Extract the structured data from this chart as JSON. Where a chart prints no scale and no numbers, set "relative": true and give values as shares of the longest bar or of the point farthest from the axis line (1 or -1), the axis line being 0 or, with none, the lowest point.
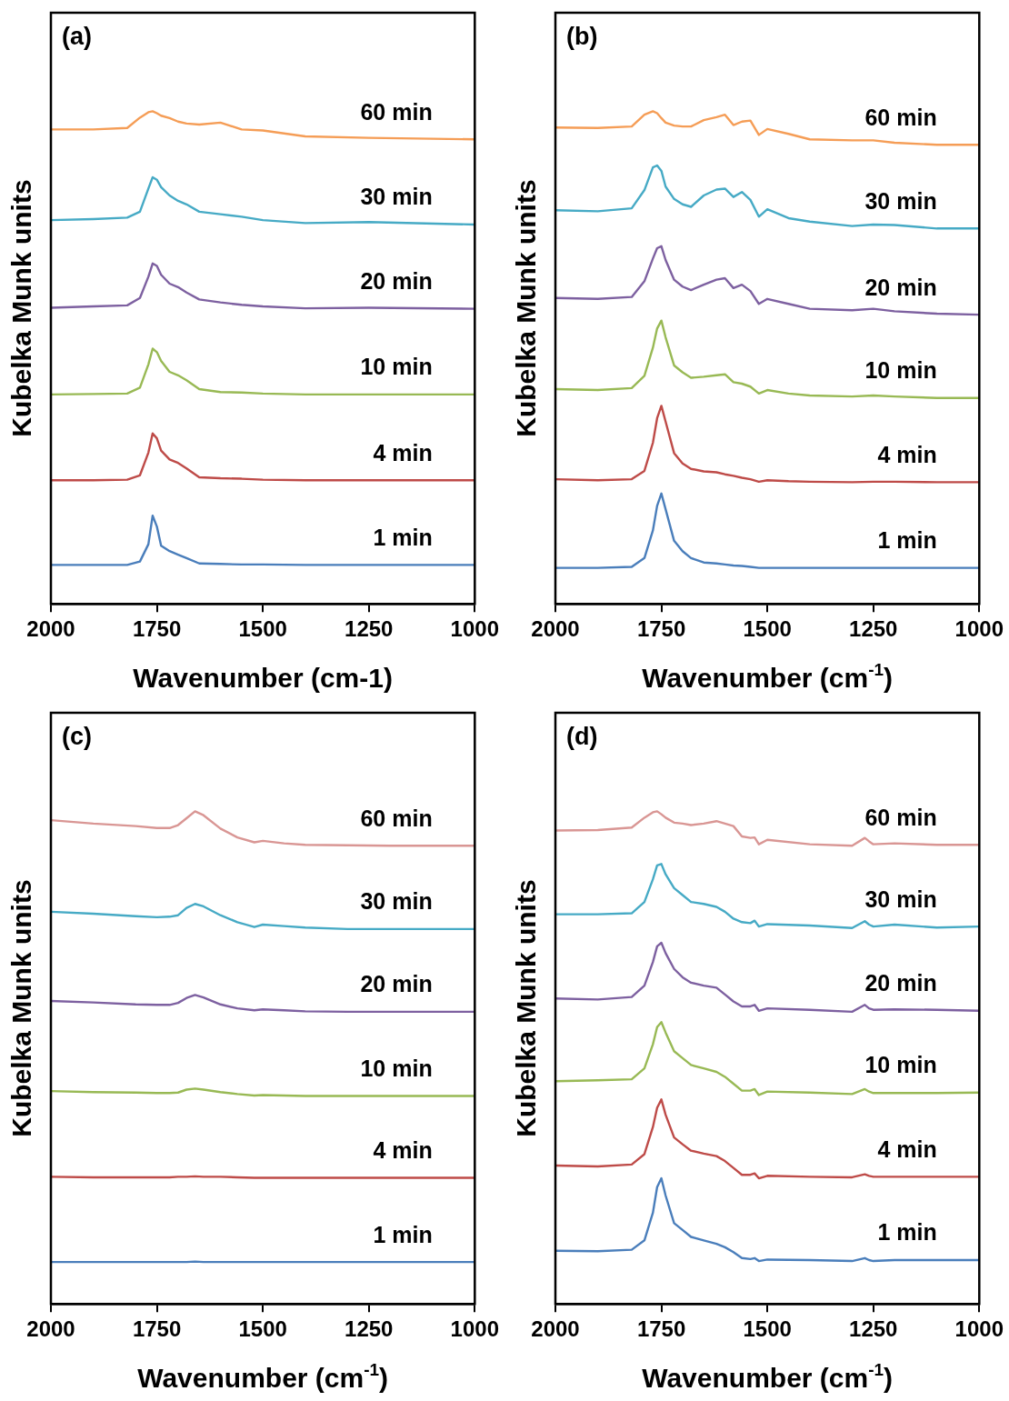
{
  "chart_data": [
    {
      "type": "line",
      "title": "(a)",
      "xlabel": "Wavenumber (cm-1)",
      "ylabel": "Kubelka Munk units",
      "relative": true,
      "legend": false,
      "xlim": [
        2000,
        1000
      ],
      "xticks": [
        2000,
        1750,
        1500,
        1250,
        1000
      ],
      "x": [
        2000,
        1900,
        1820,
        1790,
        1770,
        1760,
        1750,
        1740,
        1720,
        1700,
        1680,
        1650,
        1600,
        1550,
        1500,
        1400,
        1250,
        1000
      ],
      "series": [
        {
          "name": "60 min",
          "color": "#f59d56",
          "values": [
            0.963,
            0.963,
            0.966,
            0.987,
            0.998,
            1,
            0.996,
            0.991,
            0.986,
            0.979,
            0.975,
            0.973,
            0.977,
            0.963,
            0.961,
            0.949,
            0.946,
            0.943
          ]
        },
        {
          "name": "30 min",
          "color": "#46aac5",
          "values": [
            0.779,
            0.781,
            0.784,
            0.796,
            0.843,
            0.866,
            0.861,
            0.846,
            0.829,
            0.818,
            0.811,
            0.796,
            0.791,
            0.786,
            0.779,
            0.773,
            0.775,
            0.77
          ]
        },
        {
          "name": "20 min",
          "color": "#7d60a0",
          "values": [
            0.601,
            0.604,
            0.606,
            0.621,
            0.664,
            0.691,
            0.686,
            0.668,
            0.65,
            0.643,
            0.632,
            0.618,
            0.612,
            0.607,
            0.604,
            0.6,
            0.601,
            0.599
          ]
        },
        {
          "name": "10 min",
          "color": "#98b954",
          "values": [
            0.425,
            0.426,
            0.427,
            0.439,
            0.486,
            0.518,
            0.511,
            0.493,
            0.471,
            0.464,
            0.454,
            0.436,
            0.43,
            0.429,
            0.427,
            0.425,
            0.425,
            0.425
          ]
        },
        {
          "name": "4 min",
          "color": "#be4b48",
          "values": [
            0.251,
            0.251,
            0.252,
            0.261,
            0.307,
            0.346,
            0.336,
            0.311,
            0.293,
            0.286,
            0.275,
            0.257,
            0.255,
            0.254,
            0.252,
            0.251,
            0.251,
            0.251
          ]
        },
        {
          "name": "1 min",
          "color": "#4a7ebb",
          "values": [
            0.079,
            0.079,
            0.079,
            0.086,
            0.121,
            0.179,
            0.157,
            0.118,
            0.107,
            0.1,
            0.093,
            0.082,
            0.081,
            0.08,
            0.08,
            0.079,
            0.079,
            0.079
          ]
        }
      ]
    },
    {
      "type": "line",
      "title": "(b)",
      "xlabel": "Wavenumber (cm$^{-1}$)",
      "ylabel": "Kubelka Munk units",
      "relative": true,
      "legend": false,
      "xlim": [
        2000,
        1000
      ],
      "xticks": [
        2000,
        1750,
        1500,
        1250,
        1000
      ],
      "x": [
        2000,
        1900,
        1820,
        1790,
        1770,
        1760,
        1750,
        1740,
        1720,
        1700,
        1680,
        1650,
        1620,
        1600,
        1580,
        1560,
        1540,
        1520,
        1500,
        1450,
        1400,
        1300,
        1250,
        1200,
        1100,
        1000
      ],
      "series": [
        {
          "name": "60 min",
          "color": "#f59d56",
          "values": [
            0.967,
            0.966,
            0.969,
            0.993,
            1,
            0.996,
            0.986,
            0.977,
            0.971,
            0.969,
            0.969,
            0.982,
            0.988,
            0.993,
            0.972,
            0.979,
            0.981,
            0.952,
            0.964,
            0.954,
            0.943,
            0.941,
            0.941,
            0.936,
            0.932,
            0.932
          ]
        },
        {
          "name": "30 min",
          "color": "#46aac5",
          "values": [
            0.799,
            0.797,
            0.803,
            0.84,
            0.886,
            0.89,
            0.879,
            0.847,
            0.822,
            0.811,
            0.806,
            0.829,
            0.841,
            0.843,
            0.826,
            0.836,
            0.82,
            0.786,
            0.801,
            0.783,
            0.776,
            0.767,
            0.77,
            0.769,
            0.762,
            0.762
          ]
        },
        {
          "name": "20 min",
          "color": "#7d60a0",
          "values": [
            0.621,
            0.619,
            0.623,
            0.655,
            0.701,
            0.722,
            0.726,
            0.698,
            0.658,
            0.644,
            0.637,
            0.648,
            0.658,
            0.661,
            0.641,
            0.648,
            0.635,
            0.609,
            0.619,
            0.609,
            0.599,
            0.596,
            0.599,
            0.594,
            0.589,
            0.587
          ]
        },
        {
          "name": "10 min",
          "color": "#98b954",
          "values": [
            0.436,
            0.434,
            0.438,
            0.463,
            0.52,
            0.559,
            0.575,
            0.541,
            0.484,
            0.47,
            0.459,
            0.461,
            0.464,
            0.466,
            0.45,
            0.447,
            0.441,
            0.427,
            0.434,
            0.427,
            0.423,
            0.421,
            0.423,
            0.421,
            0.418,
            0.418
          ]
        },
        {
          "name": "4 min",
          "color": "#be4b48",
          "values": [
            0.253,
            0.251,
            0.253,
            0.27,
            0.327,
            0.377,
            0.402,
            0.37,
            0.306,
            0.285,
            0.274,
            0.269,
            0.267,
            0.263,
            0.26,
            0.256,
            0.253,
            0.248,
            0.251,
            0.249,
            0.248,
            0.247,
            0.248,
            0.248,
            0.247,
            0.247
          ]
        },
        {
          "name": "1 min",
          "color": "#4a7ebb",
          "values": [
            0.073,
            0.073,
            0.075,
            0.093,
            0.149,
            0.199,
            0.224,
            0.192,
            0.128,
            0.107,
            0.093,
            0.084,
            0.082,
            0.08,
            0.078,
            0.077,
            0.075,
            0.073,
            0.073,
            0.073,
            0.073,
            0.073,
            0.073,
            0.073,
            0.073,
            0.073
          ]
        }
      ]
    },
    {
      "type": "line",
      "title": "(c)",
      "xlabel": "Wavenumber (cm$^{-1}$)",
      "ylabel": "Kubelka Munk units",
      "relative": true,
      "legend": false,
      "xlim": [
        2000,
        1000
      ],
      "xticks": [
        2000,
        1750,
        1500,
        1250,
        1000
      ],
      "x": [
        2000,
        1900,
        1800,
        1750,
        1720,
        1700,
        1680,
        1660,
        1640,
        1600,
        1560,
        1520,
        1500,
        1450,
        1400,
        1300,
        1200,
        1100,
        1000
      ],
      "series": [
        {
          "name": "60 min",
          "color": "#d99694",
          "values": [
            0.982,
            0.975,
            0.97,
            0.966,
            0.966,
            0.972,
            0.986,
            1,
            0.992,
            0.965,
            0.947,
            0.937,
            0.94,
            0.935,
            0.932,
            0.931,
            0.93,
            0.93,
            0.93
          ]
        },
        {
          "name": "30 min",
          "color": "#46aac5",
          "values": [
            0.796,
            0.792,
            0.787,
            0.785,
            0.786,
            0.789,
            0.804,
            0.812,
            0.807,
            0.789,
            0.775,
            0.765,
            0.77,
            0.767,
            0.764,
            0.761,
            0.761,
            0.761,
            0.761
          ]
        },
        {
          "name": "20 min",
          "color": "#7d60a0",
          "values": [
            0.615,
            0.612,
            0.608,
            0.607,
            0.607,
            0.611,
            0.621,
            0.627,
            0.622,
            0.608,
            0.6,
            0.596,
            0.598,
            0.596,
            0.594,
            0.593,
            0.593,
            0.593,
            0.593
          ]
        },
        {
          "name": "10 min",
          "color": "#98b954",
          "values": [
            0.432,
            0.43,
            0.429,
            0.428,
            0.428,
            0.429,
            0.435,
            0.437,
            0.435,
            0.43,
            0.426,
            0.423,
            0.424,
            0.423,
            0.422,
            0.422,
            0.422,
            0.422,
            0.422
          ]
        },
        {
          "name": "4 min",
          "color": "#be4b48",
          "values": [
            0.258,
            0.257,
            0.257,
            0.257,
            0.257,
            0.258,
            0.258,
            0.259,
            0.258,
            0.258,
            0.257,
            0.256,
            0.256,
            0.256,
            0.256,
            0.256,
            0.256,
            0.256,
            0.256
          ]
        },
        {
          "name": "1 min",
          "color": "#4a7ebb",
          "values": [
            0.085,
            0.085,
            0.085,
            0.085,
            0.085,
            0.085,
            0.085,
            0.086,
            0.085,
            0.085,
            0.085,
            0.085,
            0.085,
            0.085,
            0.085,
            0.085,
            0.085,
            0.085,
            0.085
          ]
        }
      ]
    },
    {
      "type": "line",
      "title": "(d)",
      "xlabel": "Wavenumber (cm$^{-1}$)",
      "ylabel": "Kubelka Munk units",
      "relative": true,
      "legend": false,
      "xlim": [
        2000,
        1000
      ],
      "xticks": [
        2000,
        1750,
        1500,
        1250,
        1000
      ],
      "x": [
        2000,
        1900,
        1820,
        1790,
        1770,
        1760,
        1750,
        1740,
        1720,
        1700,
        1680,
        1650,
        1620,
        1600,
        1580,
        1560,
        1540,
        1530,
        1520,
        1500,
        1400,
        1300,
        1270,
        1260,
        1250,
        1200,
        1100,
        1000
      ],
      "series": [
        {
          "name": "60 min",
          "color": "#d99694",
          "values": [
            0.961,
            0.962,
            0.967,
            0.987,
            0.998,
            1,
            0.994,
            0.987,
            0.977,
            0.975,
            0.972,
            0.975,
            0.98,
            0.975,
            0.97,
            0.949,
            0.946,
            0.947,
            0.933,
            0.942,
            0.933,
            0.93,
            0.946,
            0.939,
            0.933,
            0.935,
            0.932,
            0.932
          ]
        },
        {
          "name": "30 min",
          "color": "#46aac5",
          "values": [
            0.791,
            0.791,
            0.793,
            0.816,
            0.862,
            0.89,
            0.893,
            0.872,
            0.844,
            0.83,
            0.816,
            0.812,
            0.806,
            0.796,
            0.782,
            0.775,
            0.773,
            0.778,
            0.766,
            0.771,
            0.768,
            0.763,
            0.777,
            0.77,
            0.766,
            0.77,
            0.764,
            0.766
          ]
        },
        {
          "name": "20 min",
          "color": "#7d60a0",
          "values": [
            0.62,
            0.618,
            0.623,
            0.646,
            0.694,
            0.726,
            0.733,
            0.712,
            0.68,
            0.663,
            0.652,
            0.646,
            0.642,
            0.628,
            0.614,
            0.604,
            0.604,
            0.607,
            0.595,
            0.6,
            0.597,
            0.593,
            0.607,
            0.6,
            0.597,
            0.598,
            0.597,
            0.595
          ]
        },
        {
          "name": "10 min",
          "color": "#98b954",
          "values": [
            0.452,
            0.454,
            0.456,
            0.478,
            0.527,
            0.562,
            0.572,
            0.551,
            0.513,
            0.499,
            0.485,
            0.478,
            0.471,
            0.461,
            0.447,
            0.433,
            0.433,
            0.436,
            0.424,
            0.431,
            0.429,
            0.426,
            0.436,
            0.431,
            0.428,
            0.428,
            0.428,
            0.429
          ]
        },
        {
          "name": "4 min",
          "color": "#be4b48",
          "values": [
            0.281,
            0.279,
            0.283,
            0.304,
            0.359,
            0.398,
            0.415,
            0.384,
            0.338,
            0.324,
            0.311,
            0.305,
            0.3,
            0.29,
            0.276,
            0.262,
            0.262,
            0.265,
            0.255,
            0.26,
            0.258,
            0.257,
            0.263,
            0.26,
            0.258,
            0.258,
            0.258,
            0.258
          ]
        },
        {
          "name": "1 min",
          "color": "#4a7ebb",
          "values": [
            0.108,
            0.107,
            0.11,
            0.129,
            0.185,
            0.237,
            0.255,
            0.22,
            0.164,
            0.15,
            0.136,
            0.129,
            0.122,
            0.115,
            0.105,
            0.093,
            0.091,
            0.093,
            0.087,
            0.09,
            0.089,
            0.087,
            0.093,
            0.089,
            0.087,
            0.089,
            0.089,
            0.089
          ]
        }
      ]
    }
  ]
}
